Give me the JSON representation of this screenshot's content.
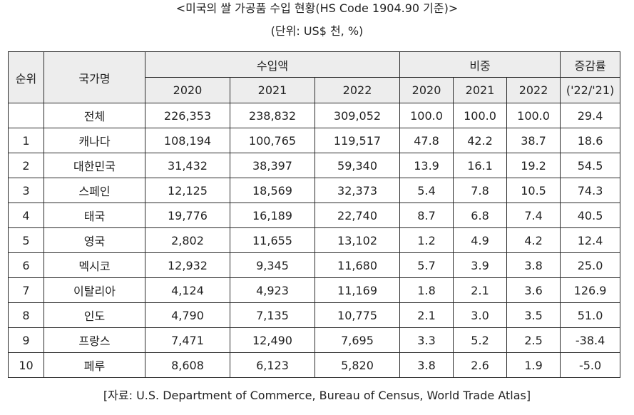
{
  "title": "<미국의 쌀 가공품 수입 현황(HS Code 1904.90 기준)>",
  "unit": "(단위: US$ 천, %)",
  "header": {
    "rank": "순위",
    "country": "국가명",
    "import_amount": "수입액",
    "share": "비중",
    "growth": "증감률",
    "growth_sub": "('22/'21)",
    "years": [
      "2020",
      "2021",
      "2022"
    ]
  },
  "rows": [
    {
      "rank": "",
      "country": "전체",
      "v2020": "226,353",
      "v2021": "238,832",
      "v2022": "309,052",
      "s2020": "100.0",
      "s2021": "100.0",
      "s2022": "100.0",
      "growth": "29.4"
    },
    {
      "rank": "1",
      "country": "캐나다",
      "v2020": "108,194",
      "v2021": "100,765",
      "v2022": "119,517",
      "s2020": "47.8",
      "s2021": "42.2",
      "s2022": "38.7",
      "growth": "18.6"
    },
    {
      "rank": "2",
      "country": "대한민국",
      "v2020": "31,432",
      "v2021": "38,397",
      "v2022": "59,340",
      "s2020": "13.9",
      "s2021": "16.1",
      "s2022": "19.2",
      "growth": "54.5"
    },
    {
      "rank": "3",
      "country": "스페인",
      "v2020": "12,125",
      "v2021": "18,569",
      "v2022": "32,373",
      "s2020": "5.4",
      "s2021": "7.8",
      "s2022": "10.5",
      "growth": "74.3"
    },
    {
      "rank": "4",
      "country": "태국",
      "v2020": "19,776",
      "v2021": "16,189",
      "v2022": "22,740",
      "s2020": "8.7",
      "s2021": "6.8",
      "s2022": "7.4",
      "growth": "40.5"
    },
    {
      "rank": "5",
      "country": "영국",
      "v2020": "2,802",
      "v2021": "11,655",
      "v2022": "13,102",
      "s2020": "1.2",
      "s2021": "4.9",
      "s2022": "4.2",
      "growth": "12.4"
    },
    {
      "rank": "6",
      "country": "멕시코",
      "v2020": "12,932",
      "v2021": "9,345",
      "v2022": "11,680",
      "s2020": "5.7",
      "s2021": "3.9",
      "s2022": "3.8",
      "growth": "25.0"
    },
    {
      "rank": "7",
      "country": "이탈리아",
      "v2020": "4,124",
      "v2021": "4,923",
      "v2022": "11,169",
      "s2020": "1.8",
      "s2021": "2.1",
      "s2022": "3.6",
      "growth": "126.9"
    },
    {
      "rank": "8",
      "country": "인도",
      "v2020": "4,790",
      "v2021": "7,135",
      "v2022": "10,775",
      "s2020": "2.1",
      "s2021": "3.0",
      "s2022": "3.5",
      "growth": "51.0"
    },
    {
      "rank": "9",
      "country": "프랑스",
      "v2020": "7,471",
      "v2021": "12,490",
      "v2022": "7,695",
      "s2020": "3.3",
      "s2021": "5.2",
      "s2022": "2.5",
      "growth": "-38.4"
    },
    {
      "rank": "10",
      "country": "페루",
      "v2020": "8,608",
      "v2021": "6,123",
      "v2022": "5,820",
      "s2020": "3.8",
      "s2021": "2.6",
      "s2022": "1.9",
      "growth": "-5.0"
    }
  ],
  "source": "[자료: U.S. Department of Commerce, Bureau of Census, World Trade Atlas]"
}
